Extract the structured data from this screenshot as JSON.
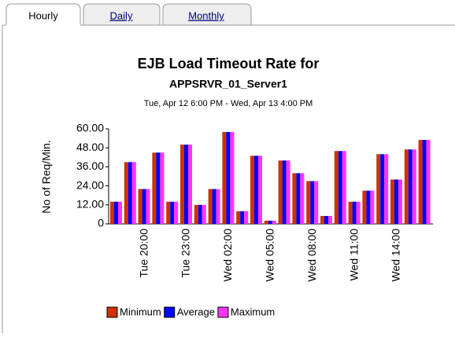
{
  "tabs": [
    "Hourly",
    "Daily",
    "Monthly"
  ],
  "chart_data": {
    "type": "bar",
    "title": "EJB Load Timeout Rate for",
    "subtitle": "APPSRVR_01_Server1",
    "date_range": "Tue, Apr 12 6:00 PM - Wed, Apr 13 4:00 PM",
    "y_label": "No of Req/Min.",
    "categories": [
      null,
      null,
      "Tue 20:00",
      null,
      null,
      "Tue 23:00",
      null,
      null,
      "Wed 02:00",
      null,
      null,
      "Wed 05:00",
      null,
      null,
      "Wed 08:00",
      null,
      null,
      "Wed 11:00",
      null,
      null,
      "Wed 14:00",
      null,
      null
    ],
    "series": [
      {
        "name": "Minimum",
        "color": "#cc3300",
        "values": [
          14,
          39,
          22,
          45,
          14,
          50,
          12,
          22,
          58,
          8,
          43,
          2,
          40,
          32,
          27,
          5,
          46,
          14,
          21,
          44,
          28,
          47,
          53
        ]
      },
      {
        "name": "Average",
        "color": "#0000ff",
        "values": [
          14,
          39,
          22,
          45,
          14,
          50,
          12,
          22,
          58,
          8,
          43,
          2,
          40,
          32,
          27,
          5,
          46,
          14,
          21,
          44,
          28,
          47,
          53
        ]
      },
      {
        "name": "Maximum",
        "color": "#ff33ff",
        "values": [
          14,
          39,
          22,
          45,
          14,
          50,
          12,
          22,
          58,
          8,
          43,
          2,
          40,
          32,
          27,
          5,
          46,
          14,
          21,
          44,
          28,
          47,
          53
        ]
      }
    ],
    "ylim": [
      0,
      60
    ],
    "yticks": [
      0,
      {
        "value": 12,
        "label": "12.00"
      },
      {
        "value": 24,
        "label": "24.00"
      },
      {
        "value": 36,
        "label": "36.00"
      },
      {
        "value": 48,
        "label": "48.00"
      },
      {
        "value": 60,
        "label": "60.00"
      }
    ],
    "legend": "bottom"
  }
}
